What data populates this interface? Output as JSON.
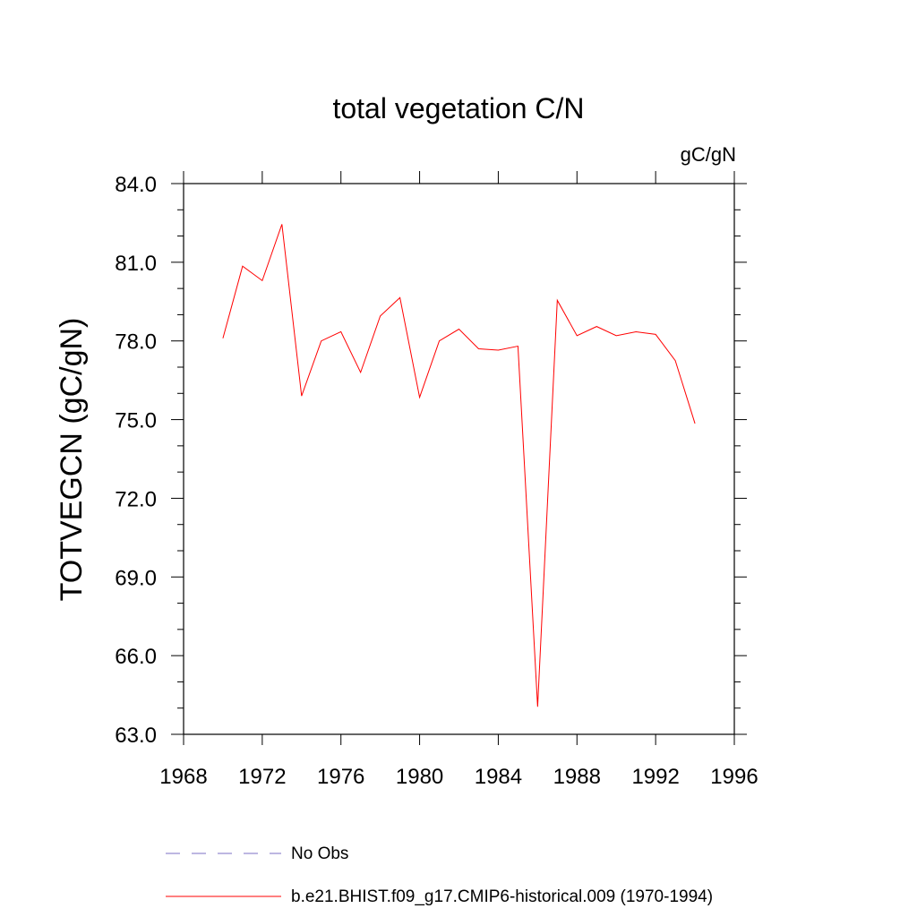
{
  "chart_data": {
    "type": "line",
    "title": "total vegetation C/N",
    "units_label": "gC/gN",
    "ylabel": "TOTVEGCN  (gC/gN)",
    "xlabel": "",
    "xlim": [
      1968,
      1996
    ],
    "ylim": [
      63.0,
      84.0
    ],
    "x_ticks": [
      "1968",
      "1972",
      "1976",
      "1980",
      "1984",
      "1988",
      "1992",
      "1996"
    ],
    "y_ticks": [
      "63.0",
      "66.0",
      "69.0",
      "72.0",
      "75.0",
      "78.0",
      "81.0",
      "84.0"
    ],
    "grid": false,
    "series": [
      {
        "name": "b.e21.BHIST.f09_g17.CMIP6-historical.009 (1970-1994)",
        "color": "#ff0000",
        "style": "solid",
        "x": [
          1970,
          1971,
          1972,
          1973,
          1974,
          1975,
          1976,
          1977,
          1978,
          1979,
          1980,
          1981,
          1982,
          1983,
          1984,
          1985,
          1986,
          1987,
          1988,
          1989,
          1990,
          1991,
          1992,
          1993,
          1994
        ],
        "y": [
          78.1,
          80.85,
          80.3,
          82.45,
          75.9,
          78.0,
          78.35,
          76.8,
          78.95,
          79.65,
          75.85,
          78.0,
          78.45,
          77.7,
          77.65,
          77.8,
          64.05,
          79.55,
          78.2,
          78.55,
          78.2,
          78.35,
          78.25,
          77.25,
          74.85
        ]
      }
    ],
    "legend": {
      "placement": "bottom",
      "entries": [
        {
          "label": "No Obs",
          "color": "#7b6fc4",
          "style": "dashed"
        },
        {
          "label": "b.e21.BHIST.f09_g17.CMIP6-historical.009 (1970-1994)",
          "color": "#ff0000",
          "style": "solid"
        }
      ]
    }
  }
}
